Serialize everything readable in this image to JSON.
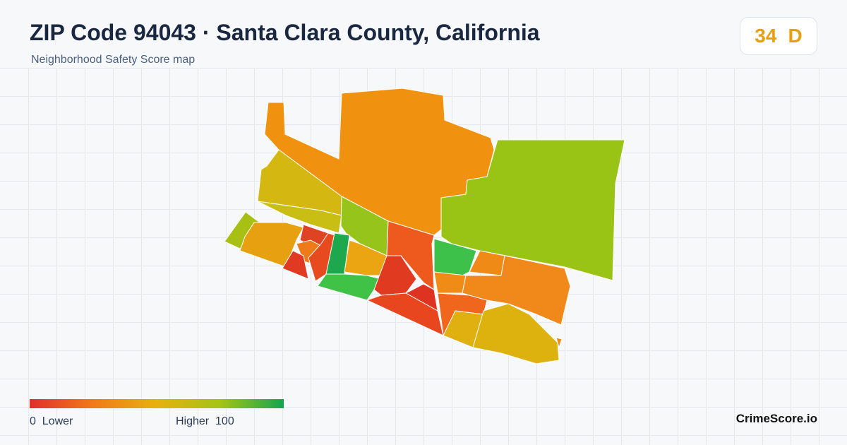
{
  "header": {
    "title": "ZIP Code 94043 · Santa Clara County, California",
    "subtitle": "Neighborhood Safety Score map"
  },
  "score": {
    "value": "34",
    "grade": "D"
  },
  "legend": {
    "min_value": "0",
    "min_text": "Lower",
    "max_text": "Higher",
    "max_value": "100"
  },
  "footer": {
    "brand": "CrimeScore.io"
  }
}
